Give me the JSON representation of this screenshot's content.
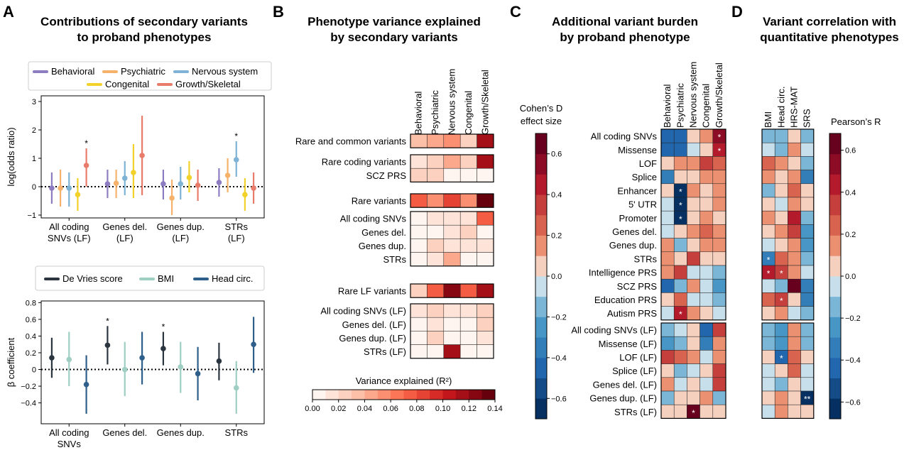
{
  "panels": {
    "A": {
      "label": "A",
      "title": [
        "Contributions of secondary variants",
        "to proband phenotypes"
      ],
      "top": {
        "type": "scatter",
        "ylabel": "log(odds ratio)",
        "ylim": [
          -1.1,
          3.2
        ],
        "yticks": [
          -1,
          0,
          1,
          2,
          3
        ],
        "legend": [
          "Behavioral",
          "Psychiatric",
          "Nervous system",
          "Congenital",
          "Growth/Skeletal"
        ],
        "colors": [
          "#8e7cc3",
          "#f6b26b",
          "#7fb3d5",
          "#f1d12a",
          "#e97b6b"
        ],
        "categories": [
          [
            "All coding",
            "SNVs (LF)"
          ],
          [
            "Genes del.",
            "(LF)"
          ],
          [
            "Genes dup.",
            "(LF)"
          ],
          [
            "STRs",
            "(LF)"
          ]
        ],
        "points": [
          [
            [
              -0.05,
              -0.6,
              0.5
            ],
            [
              -0.05,
              -0.7,
              0.6
            ],
            [
              -0.05,
              -0.7,
              0.5
            ],
            [
              -0.28,
              -0.85,
              0.3
            ],
            [
              0.75,
              0.0,
              1.35
            ]
          ],
          [
            [
              0.1,
              -0.4,
              0.6
            ],
            [
              0.12,
              -0.4,
              0.6
            ],
            [
              0.3,
              -0.3,
              0.9
            ],
            [
              0.5,
              -0.4,
              1.5
            ],
            [
              1.1,
              -0.3,
              2.5
            ]
          ],
          [
            [
              0.1,
              -0.45,
              0.6
            ],
            [
              -0.4,
              -1.0,
              0.25
            ],
            [
              0.1,
              -0.45,
              0.7
            ],
            [
              0.32,
              -0.2,
              0.9
            ],
            [
              0.05,
              -0.5,
              0.6
            ]
          ],
          [
            [
              0.15,
              -0.35,
              0.65
            ],
            [
              0.4,
              -0.2,
              1.0
            ],
            [
              0.95,
              0.35,
              1.6
            ],
            [
              -0.28,
              -0.85,
              0.3
            ],
            [
              -0.05,
              -0.6,
              0.5
            ]
          ]
        ],
        "stars": [
          [
            0,
            4
          ],
          [
            3,
            2
          ]
        ],
        "star_symbol": "*"
      },
      "bottom": {
        "type": "scatter",
        "ylabel": "β coefficient",
        "ylim": [
          -0.65,
          0.82
        ],
        "yticks": [
          -0.4,
          -0.2,
          0.0,
          0.2,
          0.4,
          0.6,
          0.8
        ],
        "legend": [
          "De Vries score",
          "BMI",
          "Head circ."
        ],
        "colors": [
          "#2a3540",
          "#9ecfc2",
          "#2e5f8a"
        ],
        "categories": [
          [
            "All coding",
            "SNVs"
          ],
          [
            "Genes del."
          ],
          [
            "Genes dup."
          ],
          [
            "STRs"
          ]
        ],
        "points": [
          [
            [
              0.14,
              -0.1,
              0.38
            ],
            [
              0.12,
              -0.2,
              0.45
            ],
            [
              -0.18,
              -0.53,
              0.17
            ]
          ],
          [
            [
              0.29,
              0.06,
              0.52
            ],
            [
              0.0,
              -0.32,
              0.33
            ],
            [
              0.14,
              -0.18,
              0.45
            ]
          ],
          [
            [
              0.25,
              0.05,
              0.45
            ],
            [
              0.03,
              -0.28,
              0.33
            ],
            [
              -0.05,
              -0.37,
              0.27
            ]
          ],
          [
            [
              0.1,
              -0.13,
              0.32
            ],
            [
              -0.22,
              -0.53,
              0.1
            ],
            [
              0.3,
              -0.04,
              0.63
            ]
          ]
        ],
        "stars": [
          [
            1,
            0
          ],
          [
            2,
            0
          ]
        ],
        "star_symbol": "*"
      }
    },
    "B": {
      "label": "B",
      "title": [
        "Phenotype variance explained",
        "by secondary variants"
      ],
      "columns": [
        "Behavioral",
        "Psychiatric",
        "Nervous system",
        "Congenital",
        "Growth/Skeletal"
      ],
      "groups": [
        {
          "rows": [
            "Rare and common variants"
          ],
          "values": [
            [
              0.035,
              0.04,
              0.05,
              0.03,
              0.12
            ]
          ]
        },
        {
          "rows": [
            "Rare coding variants",
            "SCZ PRS"
          ],
          "values": [
            [
              0.01,
              0.02,
              0.04,
              0.02,
              0.11
            ],
            [
              0.03,
              0.03,
              0.003,
              0.003,
              0.003
            ]
          ]
        },
        {
          "rows": [
            "Rare variants"
          ],
          "values": [
            [
              0.07,
              0.055,
              0.08,
              0.06,
              0.14
            ]
          ]
        },
        {
          "rows": [
            "All coding SNVs",
            "Genes del.",
            "Genes dup.",
            "STRs"
          ],
          "values": [
            [
              0.005,
              0.01,
              0.015,
              0.01,
              0.07
            ],
            [
              0.003,
              0.005,
              0.01,
              0.03,
              0.003
            ],
            [
              0.003,
              0.03,
              0.01,
              0.01,
              0.015
            ],
            [
              0.003,
              0.01,
              0.04,
              0.005,
              0.003
            ]
          ]
        },
        {
          "rows": [
            "Rare LF variants"
          ],
          "values": [
            [
              0.03,
              0.07,
              0.13,
              0.07,
              0.11
            ]
          ]
        },
        {
          "rows": [
            "All coding SNVs (LF)",
            "Genes del. (LF)",
            "Genes dup. (LF)",
            "STRs (LF)"
          ],
          "values": [
            [
              0.01,
              0.02,
              0.01,
              0.01,
              0.03
            ],
            [
              0.003,
              0.01,
              0.003,
              0.003,
              0.03
            ],
            [
              0.003,
              0.02,
              0.003,
              0.003,
              0.01
            ],
            [
              0.003,
              0.005,
              0.11,
              0.003,
              0.003
            ]
          ]
        }
      ],
      "colorbar": {
        "label": "Variance explained (R²)",
        "min": 0,
        "max": 0.14,
        "ticks": [
          "0.00",
          "0.02",
          "0.04",
          "0.06",
          "0.08",
          "0.10",
          "0.12",
          "0.14"
        ]
      }
    },
    "C": {
      "label": "C",
      "title": [
        "Additional variant burden",
        "by proband phenotype"
      ],
      "columns": [
        "Behavioral",
        "Psychiatric",
        "Nervous system",
        "Congenital",
        "Growth/Skeletal"
      ],
      "groups": [
        {
          "rows": [
            "All coding SNVs",
            "Missense",
            "LOF",
            "Splice",
            "Enhancer",
            "5' UTR",
            "Promoter",
            "Genes del.",
            "Genes dup.",
            "STRs",
            "Intelligence PRS",
            "SCZ PRS",
            "Education PRS",
            "Autism PRS"
          ],
          "values": [
            [
              -0.4,
              -0.4,
              0.05,
              0.1,
              0.55
            ],
            [
              -0.45,
              -0.4,
              -0.1,
              0.05,
              0.45
            ],
            [
              0.05,
              0.1,
              0.15,
              0.3,
              0.25
            ],
            [
              -0.35,
              0.05,
              0.05,
              0.1,
              0.15
            ],
            [
              0.05,
              -0.65,
              0.1,
              0.05,
              0.15
            ],
            [
              -0.05,
              -0.65,
              0.0,
              0.05,
              0.1
            ],
            [
              -0.05,
              -0.65,
              0.05,
              0.1,
              0.05
            ],
            [
              -0.05,
              0.05,
              0.1,
              0.25,
              0.15
            ],
            [
              0.1,
              -0.2,
              0.05,
              0.1,
              0.15
            ],
            [
              0.1,
              0.05,
              0.3,
              0.05,
              0.05
            ],
            [
              0.1,
              0.3,
              -0.1,
              -0.05,
              -0.2
            ],
            [
              -0.45,
              -0.2,
              0.1,
              -0.05,
              -0.3
            ],
            [
              0.05,
              0.25,
              -0.1,
              -0.05,
              -0.15
            ],
            [
              -0.1,
              0.45,
              0.1,
              0.05,
              -0.1
            ]
          ]
        },
        {
          "rows": [
            "All coding SNVs (LF)",
            "Missense (LF)",
            "LOF (LF)",
            "Splice (LF)",
            "Genes del. (LF)",
            "Genes dup. (LF)",
            "STRs (LF)"
          ],
          "values": [
            [
              -0.2,
              -0.05,
              0.05,
              -0.4,
              0.35
            ],
            [
              -0.3,
              -0.15,
              0.0,
              -0.35,
              0.1
            ],
            [
              0.3,
              0.25,
              0.1,
              -0.1,
              0.15
            ],
            [
              0.05,
              -0.15,
              -0.1,
              0.05,
              0.3
            ],
            [
              0.1,
              -0.05,
              0.0,
              -0.1,
              0.35
            ],
            [
              -0.2,
              0.05,
              0.0,
              0.1,
              -0.15
            ],
            [
              0.05,
              0.0,
              0.62,
              0.05,
              0.0
            ]
          ]
        }
      ],
      "stars": [
        [
          0,
          0,
          4
        ],
        [
          0,
          1,
          4
        ],
        [
          0,
          4,
          1
        ],
        [
          0,
          5,
          1
        ],
        [
          0,
          6,
          1
        ],
        [
          0,
          13,
          1
        ],
        [
          1,
          6,
          2
        ]
      ],
      "star_symbol": "*",
      "colorbar": {
        "label": [
          "Cohen’s D",
          "effect size"
        ],
        "min": -0.7,
        "max": 0.7,
        "ticks": [
          "0.6",
          "0.4",
          "0.2",
          "0.0",
          "−0.2",
          "−0.4",
          "−0.6"
        ]
      }
    },
    "D": {
      "label": "D",
      "title": [
        "Variant correlation with",
        "quantitative phenotypes"
      ],
      "columns": [
        "BMI",
        "Head circ.",
        "HRS-MAT",
        "SRS"
      ],
      "groups": [
        {
          "values": [
            [
              -0.1,
              -0.15,
              0.05,
              -0.1
            ],
            [
              -0.05,
              -0.1,
              0.1,
              -0.05
            ],
            [
              0.2,
              0.1,
              0.05,
              -0.1
            ],
            [
              0.15,
              0.05,
              0.1,
              -0.3
            ],
            [
              -0.1,
              0.05,
              0.2,
              0.05
            ],
            [
              0.05,
              -0.05,
              0.15,
              0.05
            ],
            [
              0.1,
              0.05,
              0.4,
              -0.1
            ],
            [
              0.05,
              0.1,
              0.3,
              -0.2
            ],
            [
              -0.05,
              0.05,
              0.15,
              -0.2
            ],
            [
              -0.3,
              0.2,
              0.1,
              -0.1
            ],
            [
              0.4,
              0.35,
              0.1,
              -0.05
            ],
            [
              -0.05,
              -0.1,
              0.65,
              -0.35
            ],
            [
              0.2,
              0.3,
              0.05,
              -0.35
            ],
            [
              0.05,
              0.1,
              -0.05,
              -0.1
            ]
          ]
        },
        {
          "values": [
            [
              -0.15,
              -0.2,
              0.1,
              -0.15
            ],
            [
              -0.1,
              -0.25,
              0.1,
              -0.1
            ],
            [
              0.05,
              -0.4,
              0.25,
              0.05
            ],
            [
              -0.05,
              0.05,
              0.2,
              -0.05
            ],
            [
              -0.05,
              -0.1,
              0.05,
              -0.05
            ],
            [
              0.05,
              0.1,
              0.05,
              -0.6
            ],
            [
              -0.05,
              0.15,
              0.05,
              0.05
            ]
          ]
        }
      ],
      "stars": [
        [
          0,
          9,
          0,
          "*"
        ],
        [
          0,
          10,
          0,
          "*"
        ],
        [
          0,
          10,
          1,
          "*"
        ],
        [
          0,
          12,
          1,
          "*"
        ],
        [
          1,
          2,
          1,
          "*"
        ],
        [
          1,
          5,
          3,
          "**"
        ]
      ],
      "colorbar": {
        "label": "Pearson’s R",
        "min": -0.68,
        "max": 0.68,
        "ticks": [
          "0.6",
          "0.4",
          "0.2",
          "0.0",
          "−0.2",
          "−0.4",
          "−0.6"
        ]
      }
    }
  }
}
